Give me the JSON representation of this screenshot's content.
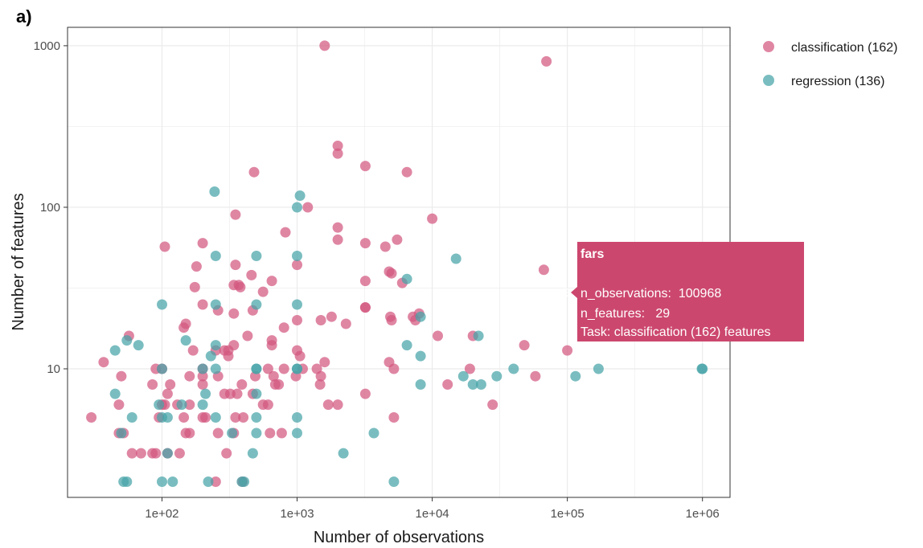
{
  "panel_label": "a)",
  "colors": {
    "classification": "#d3587f",
    "regression": "#46a3a8",
    "tooltip_bg": "#cc476e",
    "grid": "#ebebeb",
    "panel_border": "#333333"
  },
  "chart_data": {
    "type": "scatter",
    "xlabel": "Number of observations",
    "ylabel": "Number of features",
    "xscale": "log",
    "yscale": "log",
    "xlim": [
      20,
      1600000
    ],
    "ylim": [
      1.6,
      1300
    ],
    "xticks": [
      100,
      1000,
      10000,
      100000,
      1000000
    ],
    "xtick_labels": [
      "1e+02",
      "1e+03",
      "1e+04",
      "1e+05",
      "1e+06"
    ],
    "yticks": [
      10,
      100,
      1000
    ],
    "ytick_labels": [
      "10",
      "100",
      "1000"
    ],
    "grid": true,
    "legend_position": "right",
    "series": [
      {
        "name": "classification (162)",
        "color_key": "classification",
        "points": [
          [
            1600,
            1000
          ],
          [
            70000,
            800
          ],
          [
            2000,
            240
          ],
          [
            2000,
            215
          ],
          [
            3200,
            180
          ],
          [
            480,
            165
          ],
          [
            6500,
            165
          ],
          [
            1200,
            100
          ],
          [
            10000,
            85
          ],
          [
            350,
            90
          ],
          [
            2000,
            75
          ],
          [
            820,
            70
          ],
          [
            105,
            57
          ],
          [
            200,
            60
          ],
          [
            2000,
            63
          ],
          [
            3200,
            60
          ],
          [
            5500,
            63
          ],
          [
            4500,
            57
          ],
          [
            1000,
            44
          ],
          [
            180,
            43
          ],
          [
            350,
            44
          ],
          [
            5000,
            39
          ],
          [
            4800,
            40
          ],
          [
            67000,
            41
          ],
          [
            650,
            35
          ],
          [
            460,
            38
          ],
          [
            340,
            33
          ],
          [
            370,
            33
          ],
          [
            6000,
            34
          ],
          [
            3200,
            35
          ],
          [
            175,
            32
          ],
          [
            380,
            32
          ],
          [
            560,
            30
          ],
          [
            3200,
            24
          ],
          [
            7200,
            21
          ],
          [
            7500,
            20
          ],
          [
            8000,
            22
          ],
          [
            1800,
            21
          ],
          [
            5000,
            20
          ],
          [
            150,
            19
          ],
          [
            4900,
            21
          ],
          [
            3200,
            24
          ],
          [
            470,
            23
          ],
          [
            260,
            23
          ],
          [
            340,
            22
          ],
          [
            200,
            25
          ],
          [
            1500,
            20
          ],
          [
            1000,
            20
          ],
          [
            2300,
            19
          ],
          [
            800,
            18
          ],
          [
            145,
            18
          ],
          [
            11000,
            16
          ],
          [
            20000,
            16
          ],
          [
            57,
            16
          ],
          [
            430,
            16
          ],
          [
            650,
            15
          ],
          [
            650,
            14
          ],
          [
            340,
            14
          ],
          [
            250,
            13
          ],
          [
            170,
            13
          ],
          [
            290,
            13
          ],
          [
            310,
            13
          ],
          [
            1000,
            13
          ],
          [
            1050,
            12
          ],
          [
            310,
            12
          ],
          [
            37,
            11
          ],
          [
            1600,
            11
          ],
          [
            4800,
            11
          ],
          [
            100000,
            13
          ],
          [
            48000,
            14
          ],
          [
            1100,
            10
          ],
          [
            800,
            10
          ],
          [
            610,
            10
          ],
          [
            5200,
            10
          ],
          [
            19000,
            10
          ],
          [
            1400,
            10
          ],
          [
            90,
            10
          ],
          [
            100,
            10
          ],
          [
            200,
            10
          ],
          [
            260,
            9
          ],
          [
            490,
            9
          ],
          [
            670,
            9
          ],
          [
            980,
            9
          ],
          [
            1500,
            9
          ],
          [
            1480,
            8
          ],
          [
            200,
            9
          ],
          [
            160,
            9
          ],
          [
            50,
            9
          ],
          [
            58000,
            9
          ],
          [
            13000,
            8
          ],
          [
            390,
            8
          ],
          [
            200,
            8
          ],
          [
            115,
            8
          ],
          [
            85,
            8
          ],
          [
            690,
            8
          ],
          [
            730,
            8
          ],
          [
            3200,
            7
          ],
          [
            1700,
            6
          ],
          [
            2000,
            6
          ],
          [
            28000,
            6
          ],
          [
            560,
            6
          ],
          [
            610,
            6
          ],
          [
            290,
            7
          ],
          [
            320,
            7
          ],
          [
            360,
            7
          ],
          [
            470,
            7
          ],
          [
            110,
            7
          ],
          [
            105,
            6
          ],
          [
            130,
            6
          ],
          [
            160,
            6
          ],
          [
            48,
            6
          ],
          [
            100,
            6
          ],
          [
            30,
            5
          ],
          [
            200,
            5
          ],
          [
            95,
            5
          ],
          [
            145,
            5
          ],
          [
            210,
            5
          ],
          [
            350,
            5
          ],
          [
            400,
            5
          ],
          [
            5200,
            5
          ],
          [
            260,
            4
          ],
          [
            150,
            4
          ],
          [
            160,
            4
          ],
          [
            340,
            4
          ],
          [
            630,
            4
          ],
          [
            770,
            4
          ],
          [
            48,
            4
          ],
          [
            52,
            4
          ],
          [
            60,
            3
          ],
          [
            70,
            3
          ],
          [
            85,
            3
          ],
          [
            90,
            3
          ],
          [
            110,
            3
          ],
          [
            135,
            3
          ],
          [
            300,
            3
          ],
          [
            250,
            2
          ],
          [
            395,
            2
          ]
        ]
      },
      {
        "name": "regression (136)",
        "color_key": "regression",
        "points": [
          [
            245,
            125
          ],
          [
            1050,
            118
          ],
          [
            1000,
            100
          ],
          [
            15000,
            48
          ],
          [
            250,
            50
          ],
          [
            500,
            50
          ],
          [
            1000,
            50
          ],
          [
            6500,
            36
          ],
          [
            8200,
            21
          ],
          [
            250,
            25
          ],
          [
            500,
            25
          ],
          [
            1000,
            25
          ],
          [
            100,
            25
          ],
          [
            150,
            15
          ],
          [
            45,
            13
          ],
          [
            55,
            15
          ],
          [
            67,
            14
          ],
          [
            250,
            14
          ],
          [
            250,
            10
          ],
          [
            500,
            10
          ],
          [
            1000,
            10
          ],
          [
            230,
            12
          ],
          [
            8200,
            12
          ],
          [
            6500,
            14
          ],
          [
            22000,
            16
          ],
          [
            40000,
            10
          ],
          [
            1000000,
            10
          ],
          [
            990000,
            10
          ],
          [
            100,
            10
          ],
          [
            200,
            10
          ],
          [
            500,
            10
          ],
          [
            1000,
            10
          ],
          [
            17000,
            9
          ],
          [
            20000,
            8
          ],
          [
            115000,
            9
          ],
          [
            170000,
            10
          ],
          [
            30000,
            9
          ],
          [
            23000,
            8
          ],
          [
            8200,
            8
          ],
          [
            210,
            7
          ],
          [
            500,
            7
          ],
          [
            45,
            7
          ],
          [
            95,
            6
          ],
          [
            140,
            6
          ],
          [
            200,
            6
          ],
          [
            250,
            5
          ],
          [
            500,
            5
          ],
          [
            1000,
            5
          ],
          [
            60,
            5
          ],
          [
            100,
            5
          ],
          [
            110,
            5
          ],
          [
            50,
            4
          ],
          [
            330,
            4
          ],
          [
            500,
            4
          ],
          [
            1000,
            4
          ],
          [
            3700,
            4
          ],
          [
            470,
            3
          ],
          [
            2200,
            3
          ],
          [
            110,
            3
          ],
          [
            52,
            2
          ],
          [
            55,
            2
          ],
          [
            100,
            2
          ],
          [
            120,
            2
          ],
          [
            220,
            2
          ],
          [
            390,
            2
          ],
          [
            405,
            2
          ],
          [
            5200,
            2
          ]
        ]
      }
    ],
    "tooltip": {
      "anchor": [
        100968,
        29
      ],
      "title": "fars",
      "lines": [
        "n_observations:  100968",
        "n_features:   29",
        "Task: classification (162) features"
      ]
    }
  }
}
